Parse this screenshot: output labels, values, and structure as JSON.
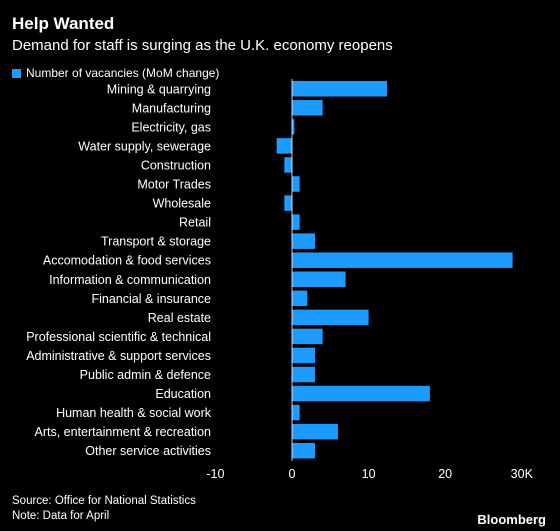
{
  "header": {
    "title": "Help Wanted",
    "subtitle": "Demand for staff is surging as the U.K. economy reopens"
  },
  "footer": {
    "source": "Source: Office for National Statistics",
    "note": "Note: Data for April",
    "brand": "Bloomberg"
  },
  "colors": {
    "bar": "#1e9bff",
    "background": "#000000",
    "text": "#ffffff"
  },
  "chart_data": {
    "type": "bar",
    "orientation": "horizontal",
    "title": "Help Wanted",
    "subtitle": "Demand for staff is surging as the U.K. economy reopens",
    "legend_position": "top-left",
    "grid": false,
    "xlim": [
      -10,
      30
    ],
    "xticks": [
      -10,
      0,
      10,
      20,
      30
    ],
    "xtick_labels": [
      "-10",
      "0",
      "10",
      "20",
      "30K"
    ],
    "categories": [
      "Mining & quarrying",
      "Manufacturing",
      "Electricity, gas",
      "Water supply, sewerage",
      "Construction",
      "Motor Trades",
      "Wholesale",
      "Retail",
      "Transport & storage",
      "Accomodation & food services",
      "Information & communication",
      "Financial & insurance",
      "Real estate",
      "Professional scientific & technical",
      "Administrative & support services",
      "Public admin & defence",
      "Education",
      "Human health & social work",
      "Arts, entertainment & recreation",
      "Other service activities"
    ],
    "series": [
      {
        "name": "Number of vacancies (MoM change)",
        "values": [
          12.4,
          4.0,
          0.3,
          -2.0,
          -1.0,
          1.0,
          -1.0,
          1.0,
          3.0,
          28.8,
          7.0,
          2.0,
          10.0,
          4.0,
          3.0,
          3.0,
          18.0,
          1.0,
          6.0,
          3.0
        ]
      }
    ]
  }
}
